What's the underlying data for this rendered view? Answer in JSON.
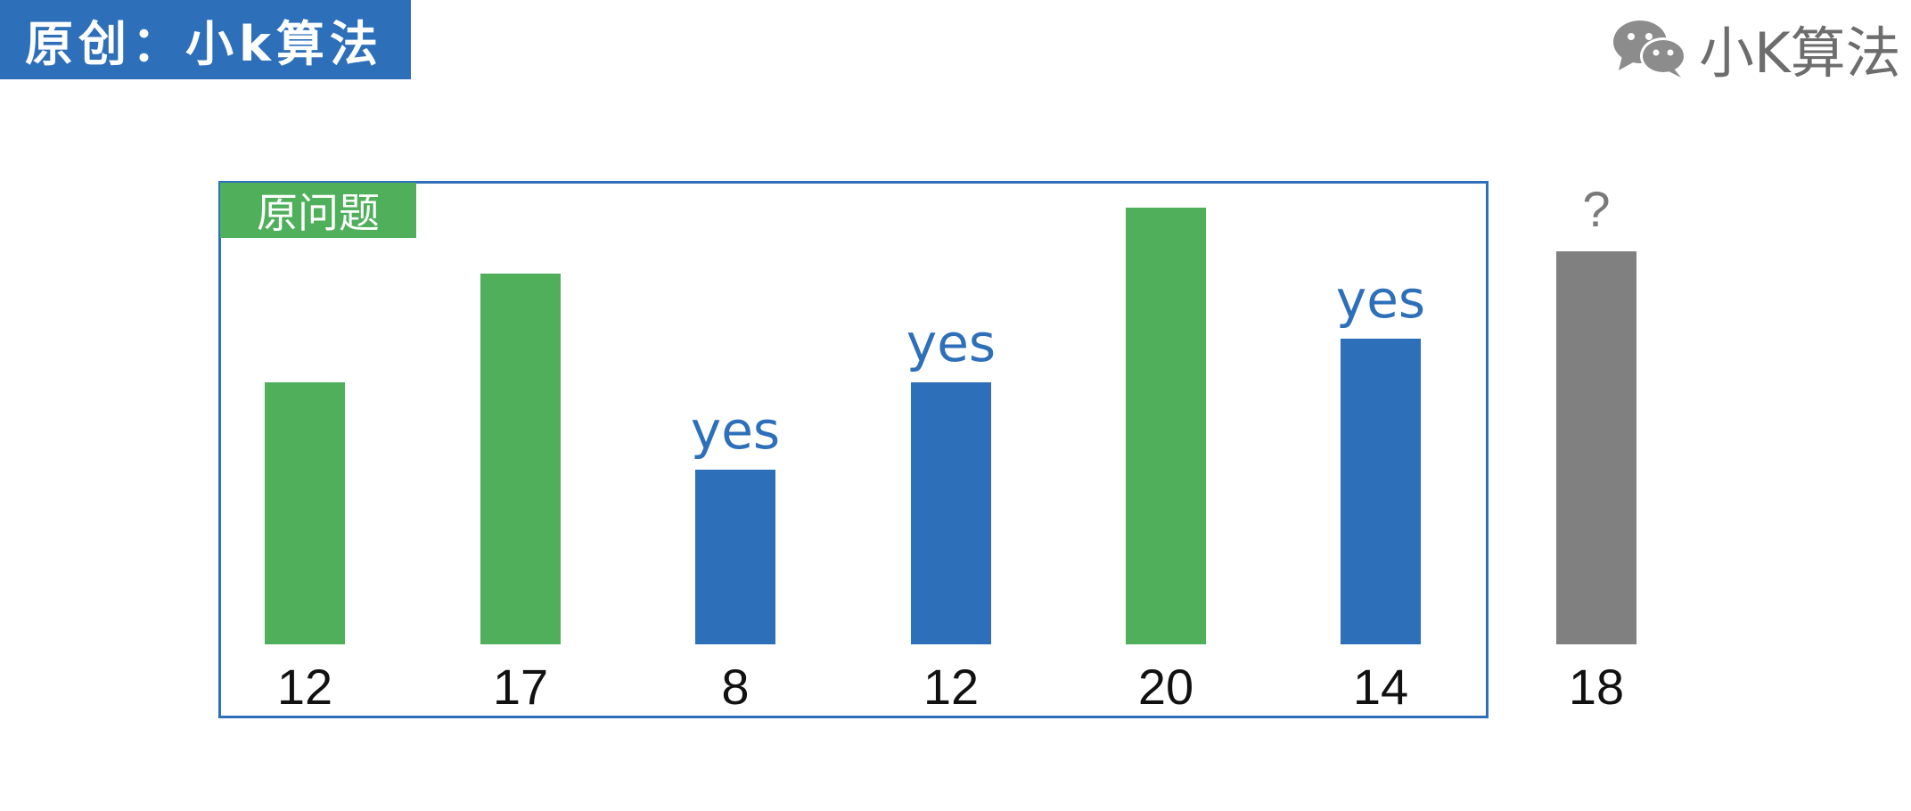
{
  "banner": {
    "text": "原创：小k算法"
  },
  "brand": {
    "text": "小K算法",
    "icon": "wechat-icon"
  },
  "frame": {
    "label": "原问题"
  },
  "colors": {
    "green": "#4faf5b",
    "blue": "#2e6fba",
    "gray": "#808080"
  },
  "items": [
    {
      "value": "12",
      "color": "green",
      "mark": ""
    },
    {
      "value": "17",
      "color": "green",
      "mark": ""
    },
    {
      "value": "8",
      "color": "blue",
      "mark": "yes"
    },
    {
      "value": "12",
      "color": "blue",
      "mark": "yes"
    },
    {
      "value": "20",
      "color": "green",
      "mark": ""
    },
    {
      "value": "14",
      "color": "blue",
      "mark": "yes"
    },
    {
      "value": "18",
      "color": "gray",
      "mark": "?"
    }
  ]
}
